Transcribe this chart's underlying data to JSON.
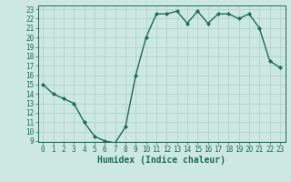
{
  "xlabel": "Humidex (Indice chaleur)",
  "x": [
    0,
    1,
    2,
    3,
    4,
    5,
    6,
    7,
    8,
    9,
    10,
    11,
    12,
    13,
    14,
    15,
    16,
    17,
    18,
    19,
    20,
    21,
    22,
    23
  ],
  "y": [
    15,
    14,
    13.5,
    13,
    11,
    9.5,
    9,
    8.8,
    10.5,
    16,
    20,
    22.5,
    22.5,
    22.8,
    21.5,
    22.8,
    21.5,
    22.5,
    22.5,
    22,
    22.5,
    21,
    17.5,
    16.8
  ],
  "line_color": "#1a6b5a",
  "marker": "D",
  "marker_size": 2,
  "bg_color": "#cde8e3",
  "grid_color": "#b0d4ce",
  "axis_bg": "#cde8e3",
  "ylim": [
    9,
    23
  ],
  "xlim": [
    -0.5,
    23.5
  ],
  "yticks": [
    9,
    10,
    11,
    12,
    13,
    14,
    15,
    16,
    17,
    18,
    19,
    20,
    21,
    22,
    23
  ],
  "xticks": [
    0,
    1,
    2,
    3,
    4,
    5,
    6,
    7,
    8,
    9,
    10,
    11,
    12,
    13,
    14,
    15,
    16,
    17,
    18,
    19,
    20,
    21,
    22,
    23
  ],
  "tick_color": "#1a6b5a",
  "label_color": "#1a6b5a",
  "tick_fontsize": 5.5,
  "xlabel_fontsize": 7
}
